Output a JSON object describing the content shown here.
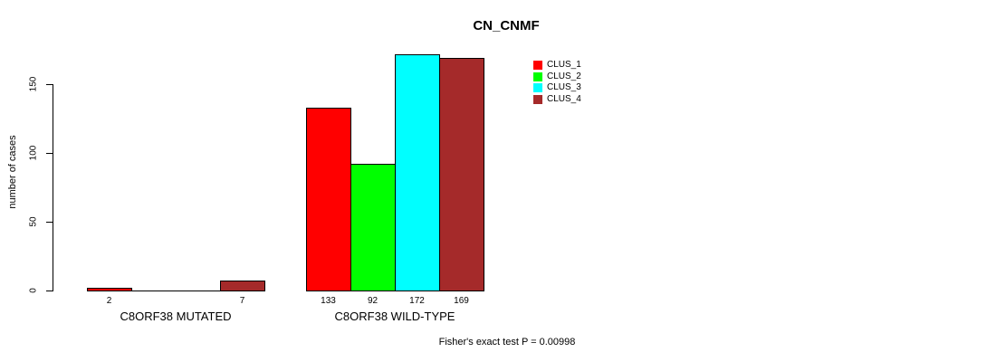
{
  "chart_data": {
    "type": "bar",
    "title": "CN_CNMF",
    "ylabel": "number of cases",
    "xlabel": "",
    "yticks": [
      0,
      50,
      100,
      150
    ],
    "ylim": [
      0,
      175
    ],
    "grid": false,
    "legend_position": "top-right",
    "groups": [
      "C8ORF38 MUTATED",
      "C8ORF38 WILD-TYPE"
    ],
    "series": [
      {
        "name": "CLUS_1",
        "color": "#ff0000",
        "values": [
          2,
          133
        ]
      },
      {
        "name": "CLUS_2",
        "color": "#00ff00",
        "values": [
          0,
          92
        ]
      },
      {
        "name": "CLUS_3",
        "color": "#00ffff",
        "values": [
          0,
          172
        ]
      },
      {
        "name": "CLUS_4",
        "color": "#a52a2a",
        "values": [
          7,
          169
        ]
      }
    ],
    "bar_value_labels_shown": [
      "2",
      "7",
      "133",
      "92",
      "172",
      "169"
    ],
    "annotation": "Fisher's exact test P = 0.00998"
  },
  "colors": {
    "background": "#ffffff",
    "axis": "#000000",
    "text": "#000000",
    "bar_border": "#000000"
  }
}
